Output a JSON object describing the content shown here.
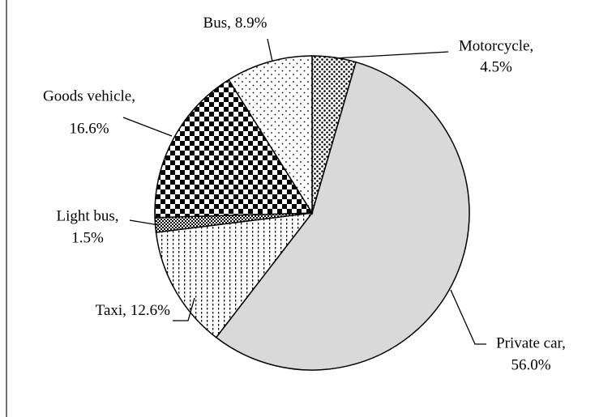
{
  "chart_data": {
    "type": "pie",
    "categories": [
      "Motorcycle,",
      "Private car,",
      "Taxi,",
      "Light bus,",
      "Goods vehicle,",
      "Bus,"
    ],
    "values": [
      4.5,
      56.0,
      12.6,
      1.5,
      16.6,
      8.9
    ],
    "value_labels": [
      "4.5%",
      "56.0%",
      "12.6%",
      "1.5%",
      "16.6%",
      "8.9%"
    ],
    "fills": [
      "dense-dots",
      "gray",
      "vertical-dots",
      "checker-dots",
      "checker",
      "sparse-dots"
    ]
  }
}
